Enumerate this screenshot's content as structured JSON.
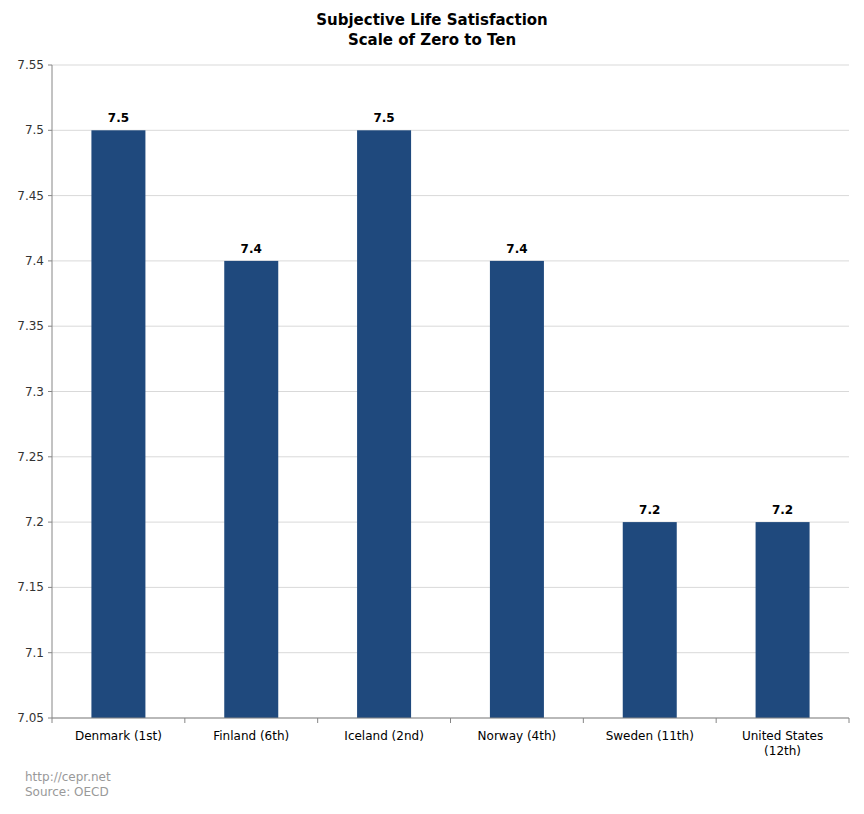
{
  "chart_data": {
    "type": "bar",
    "title": "Subjective Life Satisfaction",
    "subtitle": "Scale of Zero to Ten",
    "categories": [
      "Denmark (1st)",
      "Finland (6th)",
      "Iceland (2nd)",
      "Norway (4th)",
      "Sweden (11th)",
      "United States (12th)"
    ],
    "values": [
      7.5,
      7.4,
      7.5,
      7.4,
      7.2,
      7.2
    ],
    "color": "#1f497d",
    "ylim": [
      7.05,
      7.55
    ],
    "yticks": [
      7.05,
      7.1,
      7.15,
      7.2,
      7.25,
      7.3,
      7.35,
      7.4,
      7.45,
      7.5,
      7.55
    ],
    "grid": true,
    "data_labels": true,
    "annotations": [
      "http://cepr.net",
      "Source: OECD"
    ]
  }
}
